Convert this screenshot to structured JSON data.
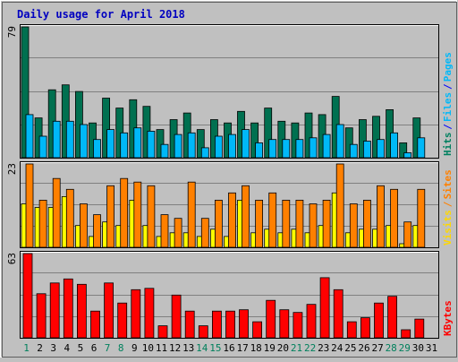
{
  "chart_data": {
    "title": "Daily usage for April 2018",
    "type": "bar",
    "colors": {
      "background": "#c0c0c0",
      "title": "#0000c0",
      "grid": "#808080",
      "hits": "#007050",
      "files": "#00b8f8",
      "sites": "#ff8000",
      "visits": "#ffff00",
      "kbytes": "#ff0000",
      "weekend_label": "#00805c",
      "weekday_label": "#000000",
      "hits_files_legend_separator": "#0000ff"
    },
    "categories": [
      "1",
      "2",
      "3",
      "4",
      "5",
      "6",
      "7",
      "8",
      "9",
      "10",
      "11",
      "12",
      "13",
      "14",
      "15",
      "16",
      "17",
      "18",
      "19",
      "20",
      "21",
      "22",
      "23",
      "24",
      "25",
      "26",
      "27",
      "28",
      "29",
      "30",
      "31"
    ],
    "weekend_days": [
      "1",
      "7",
      "8",
      "14",
      "15",
      "21",
      "22",
      "28",
      "29"
    ],
    "panels": [
      {
        "id": "hits-files",
        "max_label": "79",
        "ymax": 79,
        "legend": [
          {
            "key": "hits",
            "label": "Hits",
            "color": "#008060"
          },
          {
            "key": "sep1",
            "label": "/",
            "color": "#0000ff"
          },
          {
            "key": "files",
            "label": "Files",
            "color": "#00b8f8"
          },
          {
            "key": "sep2",
            "label": "/",
            "color": "#0000ff"
          },
          {
            "key": "pages",
            "label": "Pages",
            "color": "#00b8f8"
          }
        ],
        "series": [
          {
            "name": "Hits",
            "color": "#007050",
            "values": [
              79,
              24,
              41,
              44,
              40,
              21,
              36,
              30,
              35,
              31,
              17,
              23,
              27,
              17,
              23,
              21,
              28,
              21,
              30,
              22,
              21,
              27,
              26,
              37,
              18,
              23,
              25,
              29,
              9,
              24,
              0
            ]
          },
          {
            "name": "Files",
            "color": "#00b8f8",
            "values": [
              26,
              13,
              22,
              22,
              20,
              11,
              17,
              15,
              18,
              16,
              8,
              14,
              15,
              6,
              13,
              14,
              17,
              9,
              11,
              11,
              11,
              12,
              14,
              20,
              8,
              10,
              11,
              15,
              3,
              12,
              0
            ]
          }
        ]
      },
      {
        "id": "visits-sites",
        "max_label": "23",
        "ymax": 23,
        "legend": [
          {
            "key": "visits",
            "label": "Visits",
            "color": "#ffd800"
          },
          {
            "key": "sep",
            "label": "/",
            "color": "#ff8000"
          },
          {
            "key": "sites",
            "label": "Sites",
            "color": "#ff8000"
          }
        ],
        "series": [
          {
            "name": "Visits",
            "color": "#ffff00",
            "values": [
              12,
              11,
              11,
              14,
              6,
              3,
              7,
              6,
              13,
              6,
              3,
              4,
              4,
              3,
              5,
              3,
              13,
              4,
              5,
              4,
              5,
              4,
              6,
              15,
              4,
              5,
              5,
              6,
              1,
              6,
              0
            ]
          },
          {
            "name": "Sites",
            "color": "#ff8000",
            "values": [
              23,
              13,
              19,
              16,
              12,
              9,
              17,
              19,
              18,
              17,
              9,
              8,
              18,
              8,
              13,
              15,
              17,
              13,
              15,
              13,
              13,
              12,
              13,
              23,
              12,
              13,
              17,
              16,
              7,
              16,
              0
            ]
          }
        ]
      },
      {
        "id": "kbytes",
        "max_label": "63",
        "ymax": 63,
        "legend": [
          {
            "key": "kbytes",
            "label": "KBytes",
            "color": "#ff0000"
          }
        ],
        "series": [
          {
            "name": "KBytes",
            "color": "#ff0000",
            "values": [
              63,
              33,
              41,
              44,
              40,
              20,
              41,
              26,
              36,
              37,
              9,
              32,
              20,
              9,
              20,
              20,
              21,
              12,
              28,
              21,
              19,
              25,
              45,
              36,
              12,
              15,
              26,
              31,
              6,
              14,
              0
            ]
          }
        ]
      }
    ]
  }
}
